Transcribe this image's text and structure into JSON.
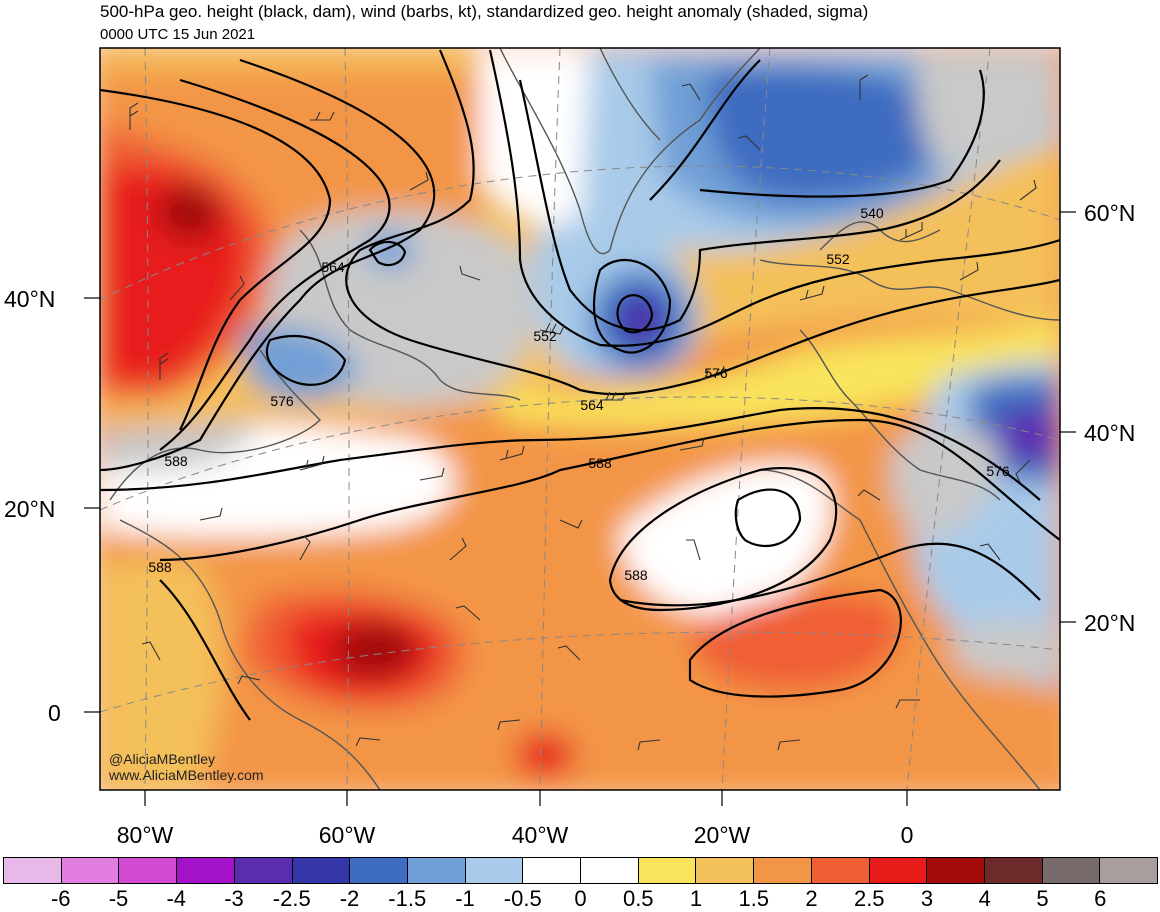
{
  "header": {
    "title": "500-hPa geo. height (black, dam), wind (barbs, kt), standardized geo. height anomaly (shaded, sigma)",
    "valid_time": "0000 UTC 15 Jun 2021"
  },
  "credits": {
    "handle": "@AliciaMBentley",
    "website": "www.AliciaMBentley.com"
  },
  "axes": {
    "left_lat_labels": [
      "40°N",
      "20°N",
      "0"
    ],
    "right_lat_labels": [
      "60°N",
      "40°N",
      "20°N"
    ],
    "bottom_lon_labels": [
      "80°W",
      "60°W",
      "40°W",
      "20°W",
      "0"
    ]
  },
  "contour_labels": [
    "564",
    "552",
    "576",
    "564",
    "588",
    "588",
    "588",
    "576",
    "552",
    "540",
    "576",
    "588"
  ],
  "colorbar": {
    "tick_labels": [
      "-6",
      "-5",
      "-4",
      "-3",
      "-2.5",
      "-2",
      "-1.5",
      "-1",
      "-0.5",
      "0",
      "0.5",
      "1",
      "1.5",
      "2",
      "2.5",
      "3",
      "4",
      "5",
      "6"
    ],
    "colors": [
      "#e8b9e8",
      "#e27ee2",
      "#d24ad2",
      "#a312c9",
      "#5b2cb0",
      "#3536a8",
      "#3d6cc0",
      "#6f9fd6",
      "#a9cbe9",
      "#ffffff",
      "#ffffff",
      "#f9e45c",
      "#f4c05a",
      "#f39546",
      "#f05e34",
      "#e81b1b",
      "#a30a0a",
      "#6e2a2a",
      "#776b6b",
      "#a89e9e"
    ]
  }
}
